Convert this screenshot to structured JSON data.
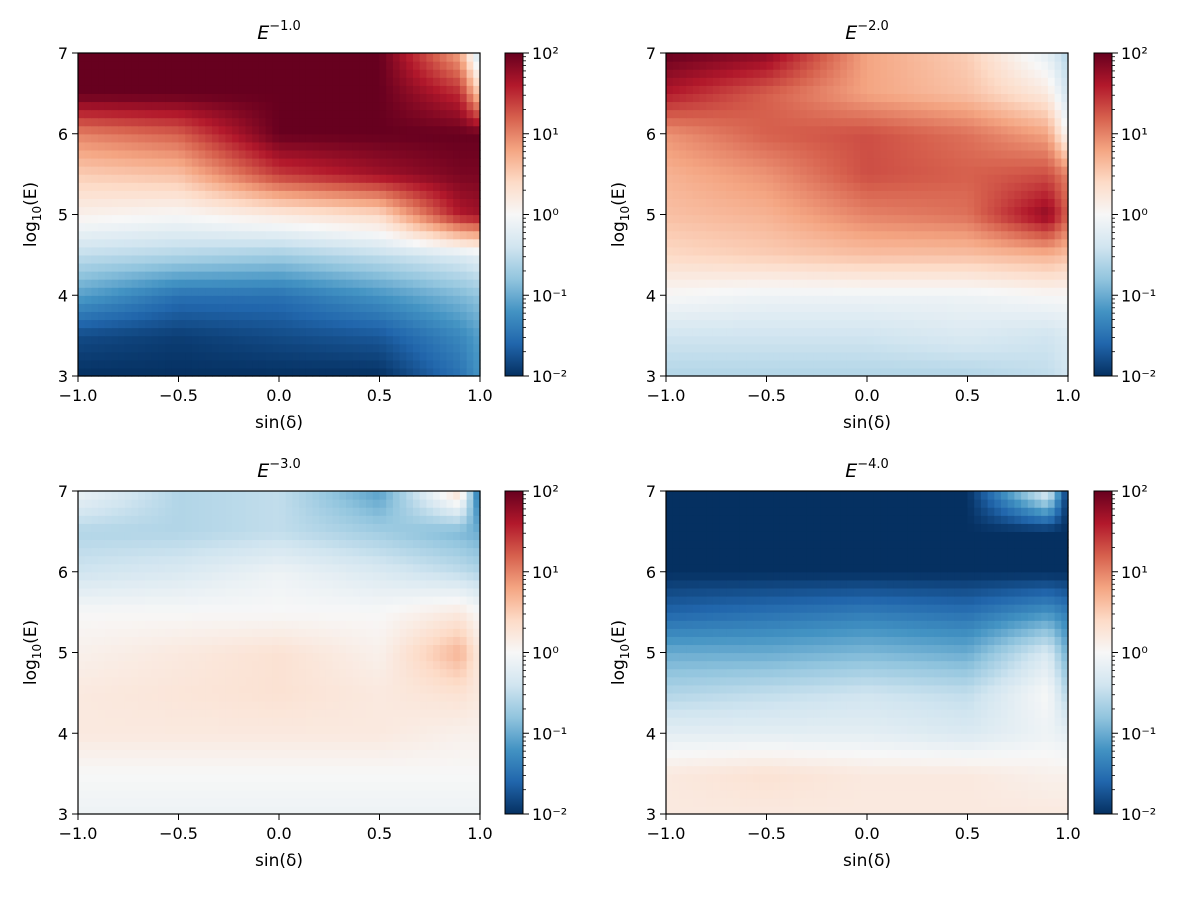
{
  "chart_data": [
    {
      "type": "heatmap",
      "title": "E^{-1.0}",
      "title_base": "E",
      "title_exp": "−1.0",
      "xlabel": "sin(δ)",
      "ylabel": "log10(E)",
      "xlim": [
        -1.0,
        1.0
      ],
      "ylim": [
        3,
        7
      ],
      "xticks": [
        "−1.0",
        "−0.5",
        "0.0",
        "0.5",
        "1.0"
      ],
      "yticks": [
        "3",
        "4",
        "5",
        "6",
        "7"
      ],
      "colorbar": {
        "scale": "log",
        "min": 0.01,
        "max": 100,
        "colormap": "RdBu_r",
        "ticks": [
          "10⁻²",
          "10⁻¹",
          "10⁰",
          "10¹",
          "10²"
        ]
      },
      "x": [
        -1.0,
        -0.5,
        0.0,
        0.5,
        0.9,
        1.0
      ],
      "y": [
        3.0,
        3.5,
        4.0,
        4.5,
        5.0,
        5.5,
        6.0,
        6.5,
        7.0
      ],
      "z_log10": [
        [
          -2.0,
          -2.0,
          -2.0,
          -2.0,
          -1.5,
          -1.2
        ],
        [
          -1.8,
          -1.9,
          -1.8,
          -1.7,
          -1.3,
          -1.1
        ],
        [
          -1.1,
          -1.5,
          -1.5,
          -1.2,
          -0.9,
          -0.8
        ],
        [
          -0.5,
          -0.6,
          -0.7,
          -0.5,
          -0.3,
          -0.2
        ],
        [
          0.1,
          0.0,
          0.2,
          0.4,
          1.6,
          1.7
        ],
        [
          0.5,
          0.6,
          1.4,
          1.7,
          1.9,
          1.9
        ],
        [
          1.0,
          1.2,
          2.0,
          2.0,
          2.0,
          2.0
        ],
        [
          2.0,
          2.0,
          2.0,
          2.0,
          1.5,
          0.5
        ],
        [
          2.0,
          2.0,
          2.0,
          2.0,
          0.8,
          -0.5
        ]
      ]
    },
    {
      "type": "heatmap",
      "title": "E^{-2.0}",
      "title_base": "E",
      "title_exp": "−2.0",
      "xlabel": "sin(δ)",
      "ylabel": "log10(E)",
      "xlim": [
        -1.0,
        1.0
      ],
      "ylim": [
        3,
        7
      ],
      "xticks": [
        "−1.0",
        "−0.5",
        "0.0",
        "0.5",
        "1.0"
      ],
      "yticks": [
        "3",
        "4",
        "5",
        "6",
        "7"
      ],
      "colorbar": {
        "scale": "log",
        "min": 0.01,
        "max": 100,
        "colormap": "RdBu_r",
        "ticks": [
          "10⁻²",
          "10⁻¹",
          "10⁰",
          "10¹",
          "10²"
        ]
      },
      "x": [
        -1.0,
        -0.5,
        0.0,
        0.5,
        0.9,
        1.0
      ],
      "y": [
        3.0,
        3.5,
        4.0,
        4.5,
        5.0,
        5.5,
        6.0,
        6.5,
        7.0
      ],
      "z_log10": [
        [
          -0.6,
          -0.6,
          -0.6,
          -0.6,
          -0.5,
          -0.4
        ],
        [
          -0.4,
          -0.4,
          -0.4,
          -0.3,
          -0.4,
          -0.3
        ],
        [
          0.0,
          -0.1,
          -0.1,
          -0.1,
          0.0,
          0.0
        ],
        [
          0.4,
          0.5,
          0.6,
          0.6,
          0.7,
          0.6
        ],
        [
          0.6,
          0.7,
          1.0,
          1.1,
          1.8,
          1.2
        ],
        [
          0.7,
          0.9,
          1.3,
          1.2,
          1.3,
          1.0
        ],
        [
          0.9,
          1.2,
          1.3,
          1.1,
          0.8,
          0.0
        ],
        [
          1.6,
          1.2,
          0.8,
          0.6,
          0.2,
          -0.4
        ],
        [
          2.0,
          1.8,
          0.8,
          0.5,
          -0.2,
          -0.6
        ]
      ]
    },
    {
      "type": "heatmap",
      "title": "E^{-3.0}",
      "title_base": "E",
      "title_exp": "−3.0",
      "xlabel": "sin(δ)",
      "ylabel": "log10(E)",
      "xlim": [
        -1.0,
        1.0
      ],
      "ylim": [
        3,
        7
      ],
      "xticks": [
        "−1.0",
        "−0.5",
        "0.0",
        "0.5",
        "1.0"
      ],
      "yticks": [
        "3",
        "4",
        "5",
        "6",
        "7"
      ],
      "colorbar": {
        "scale": "log",
        "min": 0.01,
        "max": 100,
        "colormap": "RdBu_r",
        "ticks": [
          "10⁻²",
          "10⁻¹",
          "10⁰",
          "10¹",
          "10²"
        ]
      },
      "x": [
        -1.0,
        -0.5,
        0.0,
        0.5,
        0.9,
        1.0
      ],
      "y": [
        3.0,
        3.5,
        4.0,
        4.5,
        5.0,
        5.5,
        6.0,
        6.5,
        7.0
      ],
      "z_log10": [
        [
          -0.1,
          -0.1,
          -0.1,
          -0.1,
          -0.1,
          -0.1
        ],
        [
          0.0,
          0.0,
          0.0,
          0.0,
          0.0,
          0.0
        ],
        [
          0.2,
          0.2,
          0.2,
          0.2,
          0.1,
          0.1
        ],
        [
          0.2,
          0.25,
          0.3,
          0.2,
          0.3,
          0.2
        ],
        [
          0.1,
          0.2,
          0.3,
          0.1,
          0.7,
          0.2
        ],
        [
          0.0,
          0.0,
          0.0,
          0.0,
          0.2,
          0.0
        ],
        [
          -0.4,
          -0.3,
          -0.1,
          -0.3,
          -0.5,
          -0.6
        ],
        [
          -0.6,
          -0.6,
          -0.5,
          -0.7,
          -0.9,
          -1.0
        ],
        [
          -0.1,
          -0.6,
          -0.5,
          -1.1,
          0.4,
          -1.6
        ]
      ]
    },
    {
      "type": "heatmap",
      "title": "E^{-4.0}",
      "title_base": "E",
      "title_exp": "−4.0",
      "xlabel": "sin(δ)",
      "ylabel": "log10(E)",
      "xlim": [
        -1.0,
        1.0
      ],
      "ylim": [
        3,
        7
      ],
      "xticks": [
        "−1.0",
        "−0.5",
        "0.0",
        "0.5",
        "1.0"
      ],
      "yticks": [
        "3",
        "4",
        "5",
        "6",
        "7"
      ],
      "colorbar": {
        "scale": "log",
        "min": 0.01,
        "max": 100,
        "colormap": "RdBu_r",
        "ticks": [
          "10⁻²",
          "10⁻¹",
          "10⁰",
          "10¹",
          "10²"
        ]
      },
      "x": [
        -1.0,
        -0.5,
        0.0,
        0.5,
        0.9,
        1.0
      ],
      "y": [
        3.0,
        3.5,
        4.0,
        4.5,
        5.0,
        5.5,
        6.0,
        6.5,
        7.0
      ],
      "z_log10": [
        [
          0.2,
          0.2,
          0.2,
          0.2,
          0.2,
          0.2
        ],
        [
          0.2,
          0.3,
          0.2,
          0.2,
          0.1,
          0.1
        ],
        [
          -0.2,
          -0.2,
          -0.2,
          -0.3,
          -0.1,
          -0.2
        ],
        [
          -0.6,
          -0.5,
          -0.4,
          -0.5,
          0.0,
          -0.6
        ],
        [
          -1.0,
          -1.0,
          -0.9,
          -1.0,
          -0.3,
          -1.0
        ],
        [
          -1.6,
          -1.5,
          -1.4,
          -1.5,
          -1.2,
          -1.4
        ],
        [
          -2.0,
          -2.0,
          -2.0,
          -2.0,
          -2.0,
          -2.0
        ],
        [
          -2.0,
          -2.0,
          -2.0,
          -2.0,
          -2.0,
          -2.0
        ],
        [
          -2.0,
          -2.0,
          -2.0,
          -2.0,
          -0.2,
          -2.0
        ]
      ]
    }
  ]
}
